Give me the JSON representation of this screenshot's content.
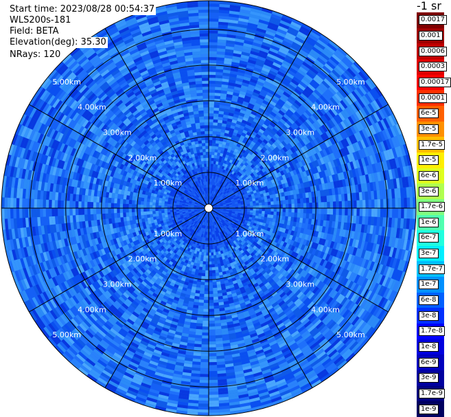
{
  "info": {
    "start_time": "Start time: 2023/08/28 00:54:37",
    "instrument": "WLS200s-181",
    "field": "Field: BETA",
    "elevation": "Elevation(deg): 35.30",
    "nrays": "NRays: 120"
  },
  "units_label": "-1 sr",
  "chart_data": {
    "type": "heatmap",
    "projection": "polar-ppi",
    "field": "BETA",
    "elevation_deg": 35.3,
    "n_rays": 120,
    "range_rings_km": [
      1,
      2,
      3,
      4,
      5
    ],
    "range_ring_labels": [
      "1.00km",
      "2.00km",
      "3.00km",
      "4.00km",
      "5.00km"
    ],
    "max_range_km": 5.8,
    "radial_spokes_deg": [
      0,
      30,
      60,
      90,
      120,
      150,
      180,
      210,
      240,
      270,
      300,
      330
    ],
    "color_scale": "log",
    "colorbar": [
      {
        "label": "0.0017",
        "color": "#7f0000"
      },
      {
        "label": "0.001",
        "color": "#9f0000"
      },
      {
        "label": "0.0006",
        "color": "#bf0000"
      },
      {
        "label": "0.0003",
        "color": "#df0000"
      },
      {
        "label": "0.00017",
        "color": "#ff0000"
      },
      {
        "label": "0.0001",
        "color": "#ff3000"
      },
      {
        "label": "6e-5",
        "color": "#ff6000"
      },
      {
        "label": "3e-5",
        "color": "#ff9000"
      },
      {
        "label": "1.7e-5",
        "color": "#ffbf00"
      },
      {
        "label": "1e-5",
        "color": "#ffef00"
      },
      {
        "label": "6e-6",
        "color": "#dfff1f"
      },
      {
        "label": "3e-6",
        "color": "#b0ff4f"
      },
      {
        "label": "1.7e-6",
        "color": "#80ff80"
      },
      {
        "label": "1e-6",
        "color": "#50ffb0"
      },
      {
        "label": "6e-7",
        "color": "#20ffdf"
      },
      {
        "label": "3e-7",
        "color": "#00efff"
      },
      {
        "label": "1.7e-7",
        "color": "#00bfff"
      },
      {
        "label": "1e-7",
        "color": "#0090ff"
      },
      {
        "label": "6e-8",
        "color": "#0060ff"
      },
      {
        "label": "3e-8",
        "color": "#0030ff"
      },
      {
        "label": "1.7e-8",
        "color": "#0000ff"
      },
      {
        "label": "1e-8",
        "color": "#0000df"
      },
      {
        "label": "6e-9",
        "color": "#0000bf"
      },
      {
        "label": "3e-9",
        "color": "#00009f"
      },
      {
        "label": "1.7e-9",
        "color": "#00007f"
      },
      {
        "label": "1e-9",
        "color": "#000060"
      }
    ],
    "dominant_value_range": [
      "1.7e-8",
      "1.7e-7"
    ],
    "grid": true
  }
}
